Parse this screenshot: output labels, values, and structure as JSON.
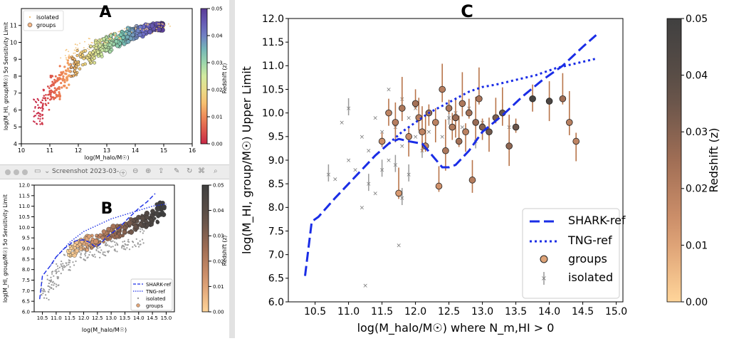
{
  "toolbar": {
    "window_title": "Screenshot 2023-03-...",
    "icons": [
      "close-dot",
      "minimize-dot",
      "zoom-dot",
      "sidebar-icon",
      "info-icon",
      "zoom-out-icon",
      "zoom-in-icon",
      "share-icon",
      "pen-icon",
      "rotate-icon",
      "markup-icon",
      "search-icon"
    ]
  },
  "colors": {
    "shark": "#1a2de6",
    "tng": "#1a2de6",
    "copper_low": "#ffd59a",
    "copper_high": "#404040",
    "isolated_marker": "#8c8c8c"
  },
  "chart_data": [
    {
      "panel_label": "A",
      "type": "scatter",
      "xlabel": "log(M_halo/M☉)",
      "ylabel": "log(M_HI, group/M☉) 5σ Sensitivity Limit",
      "xlim": [
        10,
        16
      ],
      "ylim": [
        4,
        12
      ],
      "xticks": [
        "10",
        "11",
        "12",
        "13",
        "14",
        "15",
        "16"
      ],
      "yticks": [
        "4",
        "5",
        "6",
        "7",
        "8",
        "9",
        "10",
        "11"
      ],
      "legend": [
        "isolated",
        "groups"
      ],
      "legend_position": "top-left",
      "colorbar": {
        "label": "Redshift (z)",
        "ticks": [
          "0.00",
          "0.01",
          "0.02",
          "0.03",
          "0.04",
          "0.05"
        ],
        "colormap": "spectral"
      },
      "series": [
        {
          "name": "isolated",
          "x": [
            11.5,
            11.8,
            12.0,
            12.3,
            12.6,
            12.9,
            13.2,
            13.5,
            13.8,
            14.2,
            14.6,
            15.0
          ],
          "y": [
            9.0,
            9.3,
            9.6,
            9.8,
            10.0,
            10.2,
            10.3,
            10.5,
            10.6,
            10.7,
            10.8,
            10.9
          ]
        },
        {
          "name": "groups",
          "x": [
            10.6,
            10.9,
            11.2,
            11.5,
            11.8,
            12.1,
            12.4,
            12.7,
            13.0,
            13.3,
            13.6,
            13.9,
            14.2,
            14.5,
            14.8
          ],
          "y": [
            6.5,
            7.2,
            7.8,
            8.4,
            8.9,
            9.3,
            9.6,
            9.9,
            10.1,
            10.3,
            10.4,
            10.6,
            10.7,
            10.8,
            10.9
          ]
        }
      ]
    },
    {
      "panel_label": "B",
      "type": "scatter",
      "xlabel": "log(M_halo/M☉)",
      "ylabel": "log(M_HI, group/M☉) 5σ Sensitivity Limit",
      "xlim": [
        10.2,
        15.3
      ],
      "ylim": [
        6.0,
        12.0
      ],
      "xticks": [
        "10.5",
        "11.0",
        "11.5",
        "12.0",
        "12.5",
        "13.0",
        "13.5",
        "14.0",
        "14.5",
        "15.0"
      ],
      "yticks": [
        "6.0",
        "6.5",
        "7.0",
        "7.5",
        "8.0",
        "8.5",
        "9.0",
        "9.5",
        "10.0",
        "10.5",
        "11.0",
        "11.5",
        "12.0"
      ],
      "legend": [
        "SHARK-ref",
        "TNG-ref",
        "isolated",
        "groups"
      ],
      "legend_position": "bottom-right",
      "colorbar": {
        "label": "Redshift (z)",
        "ticks": [
          "0.00",
          "0.01",
          "0.02",
          "0.03",
          "0.04",
          "0.05"
        ],
        "colormap": "copper_r"
      },
      "series": [
        {
          "name": "SHARK-ref",
          "x": [
            10.4,
            10.5,
            10.8,
            11.0,
            11.3,
            11.6,
            11.8,
            12.0,
            12.2,
            12.4,
            12.6,
            12.8,
            13.0,
            13.3,
            13.6,
            14.0,
            14.3,
            14.6
          ],
          "y": [
            6.6,
            7.7,
            8.2,
            8.6,
            9.0,
            9.3,
            9.4,
            9.4,
            9.3,
            9.1,
            9.2,
            9.5,
            9.7,
            10.0,
            10.4,
            10.9,
            11.2,
            11.6
          ]
        },
        {
          "name": "TNG-ref",
          "x": [
            10.8,
            11.0,
            11.5,
            12.0,
            12.5,
            13.0,
            13.5,
            14.0,
            14.5,
            15.0
          ],
          "y": [
            8.2,
            8.6,
            9.3,
            9.8,
            10.1,
            10.4,
            10.6,
            10.8,
            11.0,
            11.1
          ]
        },
        {
          "name": "isolated",
          "x": [
            10.6,
            10.9,
            11.1,
            11.4,
            11.6,
            11.9,
            12.1,
            12.4,
            12.7,
            13.0,
            13.3,
            13.6,
            14.0
          ],
          "y": [
            7.0,
            7.5,
            8.0,
            8.3,
            8.6,
            8.8,
            8.9,
            9.0,
            9.1,
            9.3,
            9.3,
            9.4,
            9.5
          ]
        },
        {
          "name": "groups",
          "x": [
            11.6,
            11.8,
            12.0,
            12.2,
            12.4,
            12.6,
            12.8,
            13.0,
            13.2,
            13.4,
            13.6,
            13.8,
            14.0,
            14.2,
            14.4,
            14.6,
            14.8
          ],
          "y": [
            8.9,
            9.1,
            9.2,
            9.3,
            9.4,
            9.5,
            9.6,
            9.7,
            9.8,
            9.9,
            10.0,
            10.1,
            10.2,
            10.3,
            10.4,
            10.5,
            10.9
          ]
        }
      ]
    },
    {
      "panel_label": "C",
      "type": "scatter",
      "xlabel": "log(M_halo/M☉) where N_m,HI > 0",
      "ylabel": "log(M_HI, group/M☉) Upper Limit",
      "xlim": [
        10.1,
        15.1
      ],
      "ylim": [
        6.0,
        12.0
      ],
      "xticks": [
        "10.5",
        "11.0",
        "11.5",
        "12.0",
        "12.5",
        "13.0",
        "13.5",
        "14.0",
        "14.5",
        "15.0"
      ],
      "yticks": [
        "6.0",
        "6.5",
        "7.0",
        "7.5",
        "8.0",
        "8.5",
        "9.0",
        "9.5",
        "10.0",
        "10.5",
        "11.0",
        "11.5",
        "12.0"
      ],
      "legend": [
        "SHARK-ref",
        "TNG-ref",
        "groups",
        "isolated"
      ],
      "legend_position": "bottom-right",
      "colorbar": {
        "label": "Redshift (z)",
        "ticks": [
          "0.00",
          "0.01",
          "0.02",
          "0.03",
          "0.04",
          "0.05"
        ],
        "colormap": "copper_r"
      },
      "series": [
        {
          "name": "SHARK-ref",
          "x": [
            10.35,
            10.45,
            10.55,
            10.8,
            11.0,
            11.2,
            11.4,
            11.6,
            11.75,
            11.9,
            12.1,
            12.25,
            12.4,
            12.5,
            12.6,
            12.8,
            13.0,
            13.3,
            13.6,
            13.9,
            14.2,
            14.5,
            14.7
          ],
          "y": [
            6.55,
            7.7,
            7.8,
            8.2,
            8.5,
            8.8,
            9.1,
            9.35,
            9.45,
            9.4,
            9.35,
            9.1,
            8.85,
            8.85,
            8.9,
            9.2,
            9.6,
            9.95,
            10.35,
            10.7,
            11.0,
            11.4,
            11.65
          ]
        },
        {
          "name": "TNG-ref",
          "x": [
            11.6,
            11.8,
            12.0,
            12.2,
            12.4,
            12.6,
            12.8,
            13.0,
            13.2,
            13.5,
            13.8,
            14.1,
            14.4,
            14.7
          ],
          "y": [
            9.35,
            9.6,
            9.8,
            10.0,
            10.15,
            10.3,
            10.45,
            10.55,
            10.6,
            10.7,
            10.8,
            10.95,
            11.05,
            11.15
          ]
        },
        {
          "name": "groups",
          "x": [
            11.5,
            11.6,
            11.7,
            11.75,
            11.8,
            11.9,
            12.0,
            12.05,
            12.1,
            12.15,
            12.2,
            12.3,
            12.35,
            12.4,
            12.45,
            12.5,
            12.55,
            12.6,
            12.65,
            12.7,
            12.75,
            12.8,
            12.85,
            12.9,
            12.95,
            13.0,
            13.1,
            13.2,
            13.3,
            13.4,
            13.5,
            13.75,
            14.0,
            14.2,
            14.3,
            14.4
          ],
          "y": [
            9.4,
            10.0,
            9.8,
            8.3,
            10.1,
            9.5,
            10.2,
            9.9,
            9.6,
            9.3,
            10.0,
            9.8,
            8.45,
            10.5,
            9.2,
            10.1,
            9.7,
            9.9,
            9.4,
            10.2,
            9.6,
            10.0,
            8.58,
            9.8,
            10.3,
            9.7,
            9.6,
            9.9,
            10.0,
            9.3,
            9.7,
            10.3,
            10.25,
            10.3,
            9.8,
            9.4
          ],
          "z": [
            0.015,
            0.018,
            0.02,
            0.012,
            0.022,
            0.016,
            0.024,
            0.02,
            0.018,
            0.017,
            0.025,
            0.019,
            0.014,
            0.02,
            0.022,
            0.023,
            0.021,
            0.026,
            0.024,
            0.022,
            0.019,
            0.024,
            0.02,
            0.027,
            0.023,
            0.03,
            0.034,
            0.032,
            0.036,
            0.028,
            0.035,
            0.048,
            0.045,
            0.025,
            0.02,
            0.018
          ]
        },
        {
          "name": "isolated",
          "x": [
            10.7,
            10.8,
            10.9,
            11.0,
            11.0,
            11.1,
            11.2,
            11.2,
            11.3,
            11.3,
            11.4,
            11.4,
            11.5,
            11.5,
            11.6,
            11.6,
            11.7,
            11.7,
            11.8,
            11.8,
            11.9,
            11.9,
            12.0,
            12.0,
            12.1,
            12.2,
            12.3,
            12.4,
            12.5,
            12.6,
            12.7,
            12.8,
            12.9,
            13.0,
            13.1,
            13.2,
            13.3,
            13.4,
            11.25,
            11.75,
            11.8
          ],
          "y": [
            8.7,
            8.6,
            9.8,
            9.0,
            10.1,
            8.8,
            9.5,
            8.0,
            8.5,
            9.2,
            8.3,
            9.9,
            8.8,
            9.6,
            9.0,
            10.5,
            8.9,
            9.7,
            9.3,
            10.3,
            8.7,
            9.9,
            9.5,
            10.1,
            9.2,
            9.6,
            9.8,
            9.5,
            9.9,
            10.0,
            9.7,
            10.1,
            9.4,
            9.8,
            9.6,
            9.9,
            10.0,
            9.7,
            6.35,
            7.2,
            8.2
          ]
        }
      ]
    }
  ]
}
